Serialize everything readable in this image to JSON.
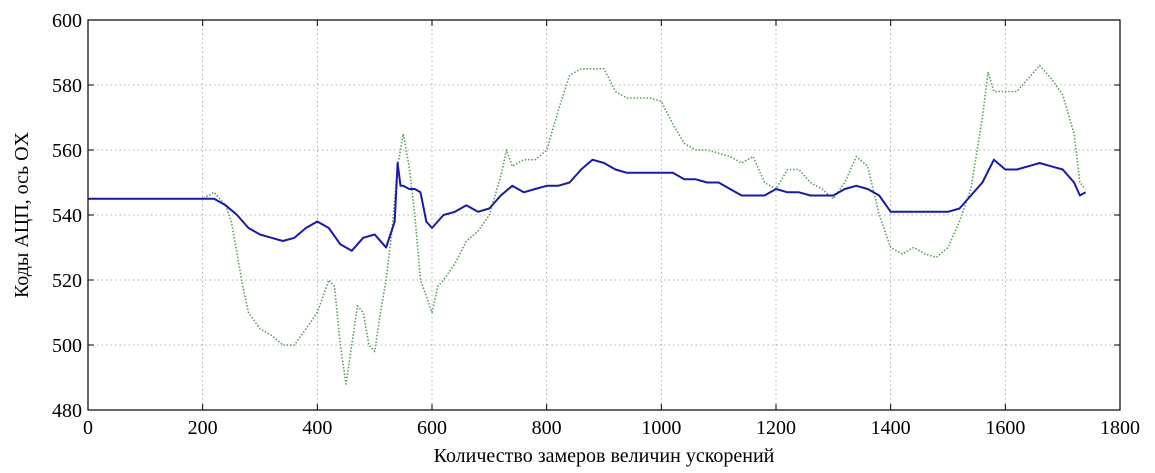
{
  "chart_data": {
    "type": "line",
    "title": "",
    "xlabel": "Количество замеров величин ускорений",
    "ylabel": "Коды АЦП, ось OX",
    "xlim": [
      0,
      1800
    ],
    "ylim": [
      480,
      600
    ],
    "xticks": [
      "0",
      "200",
      "400",
      "600",
      "800",
      "1000",
      "1200",
      "1400",
      "1600",
      "1800"
    ],
    "yticks": [
      "480",
      "500",
      "520",
      "540",
      "560",
      "580",
      "600"
    ],
    "grid": true,
    "legend": "none",
    "series": [
      {
        "color": "#1a1aa8",
        "style": "solid",
        "x": [
          0,
          100,
          200,
          220,
          240,
          260,
          280,
          300,
          320,
          340,
          360,
          380,
          400,
          420,
          440,
          460,
          480,
          500,
          520,
          535,
          540,
          545,
          550,
          560,
          570,
          580,
          590,
          600,
          620,
          640,
          660,
          680,
          700,
          720,
          740,
          760,
          780,
          800,
          820,
          840,
          860,
          880,
          900,
          920,
          940,
          960,
          980,
          1000,
          1020,
          1040,
          1060,
          1080,
          1100,
          1120,
          1140,
          1160,
          1180,
          1200,
          1220,
          1240,
          1260,
          1280,
          1300,
          1320,
          1340,
          1360,
          1380,
          1400,
          1420,
          1440,
          1460,
          1480,
          1500,
          1520,
          1540,
          1560,
          1580,
          1600,
          1620,
          1640,
          1660,
          1680,
          1700,
          1720,
          1730,
          1740
        ],
        "y": [
          545,
          545,
          545,
          545,
          543,
          540,
          536,
          534,
          533,
          532,
          533,
          536,
          538,
          536,
          531,
          529,
          533,
          534,
          530,
          538,
          556,
          549,
          549,
          548,
          548,
          547,
          538,
          536,
          540,
          541,
          543,
          541,
          542,
          546,
          549,
          547,
          548,
          549,
          549,
          550,
          554,
          557,
          556,
          554,
          553,
          553,
          553,
          553,
          553,
          551,
          551,
          550,
          550,
          548,
          546,
          546,
          546,
          548,
          547,
          547,
          546,
          546,
          546,
          548,
          549,
          548,
          546,
          541,
          541,
          541,
          541,
          541,
          541,
          542,
          546,
          550,
          557,
          554,
          554,
          555,
          556,
          555,
          554,
          550,
          546,
          547
        ]
      },
      {
        "color": "#5a9e5a",
        "style": "dotted",
        "x": [
          0,
          100,
          200,
          220,
          240,
          250,
          260,
          270,
          280,
          300,
          320,
          340,
          360,
          380,
          400,
          410,
          420,
          430,
          440,
          450,
          460,
          470,
          480,
          490,
          500,
          510,
          520,
          530,
          540,
          550,
          560,
          570,
          580,
          590,
          600,
          610,
          620,
          640,
          660,
          680,
          700,
          720,
          730,
          740,
          760,
          780,
          800,
          820,
          840,
          860,
          880,
          900,
          920,
          940,
          960,
          980,
          1000,
          1020,
          1040,
          1060,
          1080,
          1100,
          1120,
          1140,
          1160,
          1180,
          1200,
          1220,
          1240,
          1260,
          1280,
          1300,
          1320,
          1340,
          1360,
          1380,
          1400,
          1420,
          1440,
          1460,
          1480,
          1500,
          1520,
          1540,
          1560,
          1570,
          1580,
          1600,
          1620,
          1640,
          1660,
          1680,
          1700,
          1720,
          1730,
          1740
        ],
        "y": [
          545,
          545,
          545,
          547,
          543,
          538,
          528,
          518,
          510,
          505,
          503,
          500,
          500,
          505,
          510,
          515,
          520,
          518,
          500,
          488,
          500,
          512,
          510,
          500,
          498,
          510,
          520,
          535,
          555,
          565,
          555,
          540,
          520,
          515,
          510,
          518,
          520,
          525,
          532,
          535,
          540,
          552,
          560,
          555,
          557,
          557,
          560,
          572,
          583,
          585,
          585,
          585,
          578,
          576,
          576,
          576,
          575,
          568,
          562,
          560,
          560,
          559,
          558,
          556,
          558,
          550,
          548,
          554,
          554,
          550,
          548,
          545,
          550,
          558,
          555,
          540,
          530,
          528,
          530,
          528,
          527,
          530,
          538,
          548,
          570,
          584,
          578,
          578,
          578,
          582,
          586,
          582,
          577,
          565,
          550,
          548
        ]
      }
    ]
  }
}
